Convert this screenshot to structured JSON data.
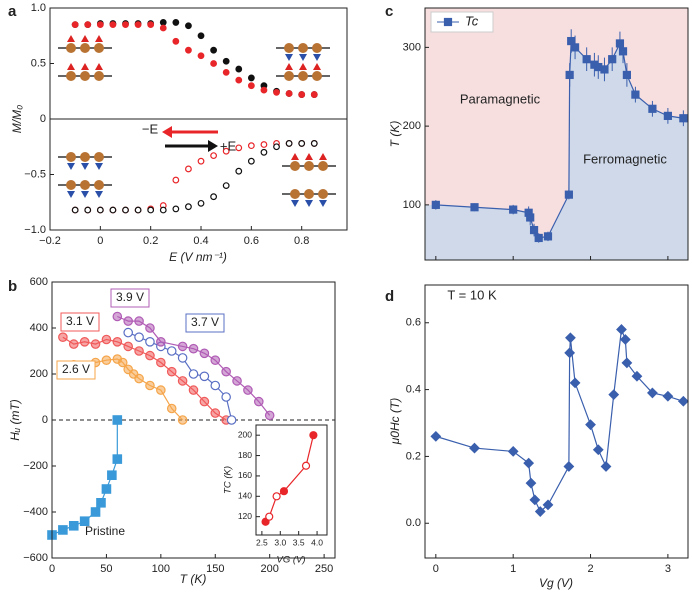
{
  "chart_data": [
    {
      "type": "scatter",
      "panel": "a",
      "x_label": "E (V nm⁻¹)",
      "y_label": "M/M₀",
      "xlim": [
        -0.2,
        0.98
      ],
      "ylim": [
        -1.0,
        1.0
      ],
      "xticks": [
        {
          "value": -0.2,
          "label": "−0.2"
        },
        0,
        0.2,
        0.4,
        0.6,
        0.8
      ],
      "yticks": [
        {
          "value": -1.0,
          "label": "−1.0"
        },
        {
          "value": -0.5,
          "label": "−0.5"
        },
        0,
        0.5,
        {
          "value": 1.0,
          "label": "1.0"
        }
      ],
      "zero_line": "solid",
      "annotations": [
        "−E",
        "+E"
      ],
      "series": [
        {
          "color": "#111111",
          "marker": "circle",
          "filled": true,
          "x": [
            -0.1,
            -0.05,
            0,
            0.05,
            0.1,
            0.15,
            0.2,
            0.25,
            0.3,
            0.35,
            0.4,
            0.45,
            0.5,
            0.55,
            0.6,
            0.65,
            0.7,
            0.75,
            0.8,
            0.85
          ],
          "values": [
            0.85,
            0.85,
            0.86,
            0.86,
            0.86,
            0.86,
            0.86,
            0.87,
            0.87,
            0.84,
            0.75,
            0.62,
            0.52,
            0.45,
            0.37,
            0.3,
            0.25,
            0.23,
            0.22,
            0.22
          ]
        },
        {
          "color": "#e8262a",
          "marker": "circle",
          "filled": true,
          "x": [
            -0.1,
            -0.05,
            0,
            0.05,
            0.1,
            0.15,
            0.2,
            0.25,
            0.3,
            0.35,
            0.4,
            0.45,
            0.5,
            0.55,
            0.6,
            0.65,
            0.7,
            0.75,
            0.8,
            0.85
          ],
          "values": [
            0.85,
            0.85,
            0.85,
            0.85,
            0.85,
            0.85,
            0.85,
            0.82,
            0.7,
            0.62,
            0.57,
            0.5,
            0.42,
            0.35,
            0.3,
            0.26,
            0.24,
            0.23,
            0.22,
            0.22
          ]
        },
        {
          "color": "#e8262a",
          "marker": "circle",
          "filled": false,
          "x": [
            -0.1,
            -0.05,
            0,
            0.05,
            0.1,
            0.15,
            0.2,
            0.25,
            0.3,
            0.35,
            0.4,
            0.45,
            0.5,
            0.55,
            0.6,
            0.65,
            0.7,
            0.75,
            0.8,
            0.85
          ],
          "values": [
            -0.82,
            -0.82,
            -0.82,
            -0.82,
            -0.82,
            -0.82,
            -0.81,
            -0.78,
            -0.55,
            -0.45,
            -0.38,
            -0.33,
            -0.29,
            -0.26,
            -0.24,
            -0.23,
            -0.22,
            -0.22,
            -0.22,
            -0.22
          ]
        },
        {
          "color": "#111111",
          "marker": "circle",
          "filled": false,
          "x": [
            -0.1,
            -0.05,
            0,
            0.05,
            0.1,
            0.15,
            0.2,
            0.25,
            0.3,
            0.35,
            0.4,
            0.45,
            0.5,
            0.55,
            0.6,
            0.65,
            0.7,
            0.75,
            0.8,
            0.85
          ],
          "values": [
            -0.82,
            -0.82,
            -0.82,
            -0.82,
            -0.82,
            -0.82,
            -0.82,
            -0.82,
            -0.81,
            -0.79,
            -0.76,
            -0.7,
            -0.6,
            -0.47,
            -0.38,
            -0.3,
            -0.25,
            -0.22,
            -0.22,
            -0.22
          ]
        }
      ]
    },
    {
      "type": "line",
      "panel": "b",
      "x_label": "T (K)",
      "y_label": "Hᵤ (mT)",
      "xlim": [
        0,
        260
      ],
      "ylim": [
        -600,
        600
      ],
      "xticks": [
        0,
        50,
        100,
        150,
        200,
        250
      ],
      "yticks": [
        {
          "value": -600,
          "label": "−600"
        },
        {
          "value": -400,
          "label": "−400"
        },
        {
          "value": -200,
          "label": "−200"
        },
        0,
        200,
        400,
        600
      ],
      "zero_line": "dashed",
      "series": [
        {
          "name": "Pristine",
          "color": "#3a9ad9",
          "marker": "square",
          "filled": true,
          "x": [
            0,
            10,
            20,
            30,
            40,
            45,
            50,
            55,
            60,
            60
          ],
          "values": [
            -500,
            -478,
            -460,
            -440,
            -400,
            -360,
            -300,
            -240,
            -170,
            0
          ]
        },
        {
          "name": "2.6 V",
          "color": "#f5a54a",
          "marker": "circle",
          "filled": true,
          "x": [
            10,
            20,
            30,
            40,
            50,
            60,
            65,
            70,
            75,
            80,
            90,
            100,
            110,
            120
          ],
          "values": [
            210,
            240,
            230,
            250,
            260,
            265,
            250,
            220,
            200,
            180,
            150,
            130,
            50,
            0
          ]
        },
        {
          "name": "3.1 V",
          "color": "#f05a5a",
          "marker": "circle",
          "filled": true,
          "x": [
            10,
            20,
            30,
            40,
            50,
            60,
            70,
            80,
            90,
            100,
            110,
            120,
            130,
            140,
            150,
            160
          ],
          "values": [
            360,
            330,
            340,
            330,
            350,
            340,
            320,
            300,
            280,
            250,
            210,
            170,
            130,
            80,
            30,
            0
          ]
        },
        {
          "name": "3.7 V",
          "color": "#5a6fc4",
          "marker": "circle",
          "filled": false,
          "x": [
            70,
            80,
            90,
            100,
            110,
            120,
            130,
            140,
            150,
            160,
            165
          ],
          "values": [
            380,
            360,
            340,
            320,
            300,
            270,
            200,
            190,
            150,
            100,
            0
          ]
        },
        {
          "name": "3.9 V",
          "color": "#b05cb5",
          "marker": "circle",
          "filled": true,
          "x": [
            60,
            70,
            80,
            90,
            100,
            120,
            130,
            140,
            150,
            160,
            170,
            180,
            190,
            200
          ],
          "values": [
            450,
            430,
            430,
            400,
            340,
            320,
            310,
            290,
            260,
            210,
            170,
            130,
            80,
            20
          ]
        }
      ]
    },
    {
      "type": "line",
      "x_label": "VG (V)",
      "y_label": "TC (K)",
      "xlim": [
        2.34,
        4.27
      ],
      "ylim": [
        102,
        210
      ],
      "xticks": [
        2.5,
        {
          "value": 3.0,
          "label": "3.0"
        },
        3.5,
        {
          "value": 4.0,
          "label": "4.0"
        }
      ],
      "yticks": [
        120,
        140,
        160,
        180,
        200
      ],
      "series": [
        {
          "color": "#e8262a",
          "marker": "circle",
          "filled": [
            true,
            false,
            false,
            true,
            false,
            true
          ],
          "x": [
            2.6,
            2.7,
            2.9,
            3.1,
            3.7,
            3.9
          ],
          "values": [
            115,
            120,
            140,
            145,
            170,
            200
          ]
        }
      ]
    },
    {
      "type": "line",
      "panel": "c",
      "y_label": "T (K)",
      "xlim": [
        -0.14,
        3.26
      ],
      "ylim": [
        30,
        350
      ],
      "yticks": [
        100,
        200,
        300
      ],
      "annotations": [
        "Paramagnetic",
        "Ferromagnetic"
      ],
      "region_colors": [
        "#f7dfe0",
        "#cfd9ea"
      ],
      "series": [
        {
          "name": "Tc",
          "color": "#3a5fad",
          "marker": "square",
          "filled": true,
          "x": [
            0,
            0.5,
            1.0,
            1.2,
            1.22,
            1.27,
            1.33,
            1.45,
            1.72,
            1.73,
            1.75,
            1.8,
            1.95,
            2.05,
            2.1,
            2.18,
            2.28,
            2.38,
            2.42,
            2.47,
            2.58,
            2.8,
            3.0,
            3.2
          ],
          "values": [
            100,
            97,
            94,
            90,
            84,
            68,
            58,
            60,
            113,
            265,
            308,
            300,
            285,
            278,
            275,
            272,
            285,
            305,
            295,
            265,
            240,
            222,
            213,
            210
          ],
          "errors": [
            6,
            5,
            6,
            8,
            10,
            8,
            6,
            6,
            6,
            15,
            15,
            15,
            15,
            15,
            15,
            15,
            15,
            15,
            15,
            15,
            10,
            10,
            10,
            10
          ]
        }
      ]
    },
    {
      "type": "line",
      "panel": "d",
      "x_label": "Vg (V)",
      "y_label": "μ0Hc (T)",
      "xlim": [
        -0.14,
        3.26
      ],
      "ylim": [
        -0.104,
        0.713
      ],
      "xticks": [
        0,
        1,
        2,
        3
      ],
      "yticks": [
        {
          "value": 0.0,
          "label": "0.0"
        },
        0.2,
        0.4,
        0.6
      ],
      "annotations": [
        "T = 10 K"
      ],
      "series": [
        {
          "color": "#3a5fad",
          "marker": "diamond",
          "filled": true,
          "x": [
            0,
            0.5,
            1,
            1.2,
            1.23,
            1.28,
            1.35,
            1.45,
            1.72,
            1.73,
            1.74,
            1.8,
            2,
            2.1,
            2.2,
            2.3,
            2.4,
            2.45,
            2.47,
            2.6,
            2.8,
            3,
            3.2
          ],
          "values": [
            0.26,
            0.225,
            0.215,
            0.18,
            0.12,
            0.07,
            0.035,
            0.055,
            0.17,
            0.51,
            0.555,
            0.42,
            0.295,
            0.22,
            0.17,
            0.385,
            0.58,
            0.55,
            0.48,
            0.44,
            0.39,
            0.38,
            0.365
          ]
        }
      ]
    }
  ]
}
